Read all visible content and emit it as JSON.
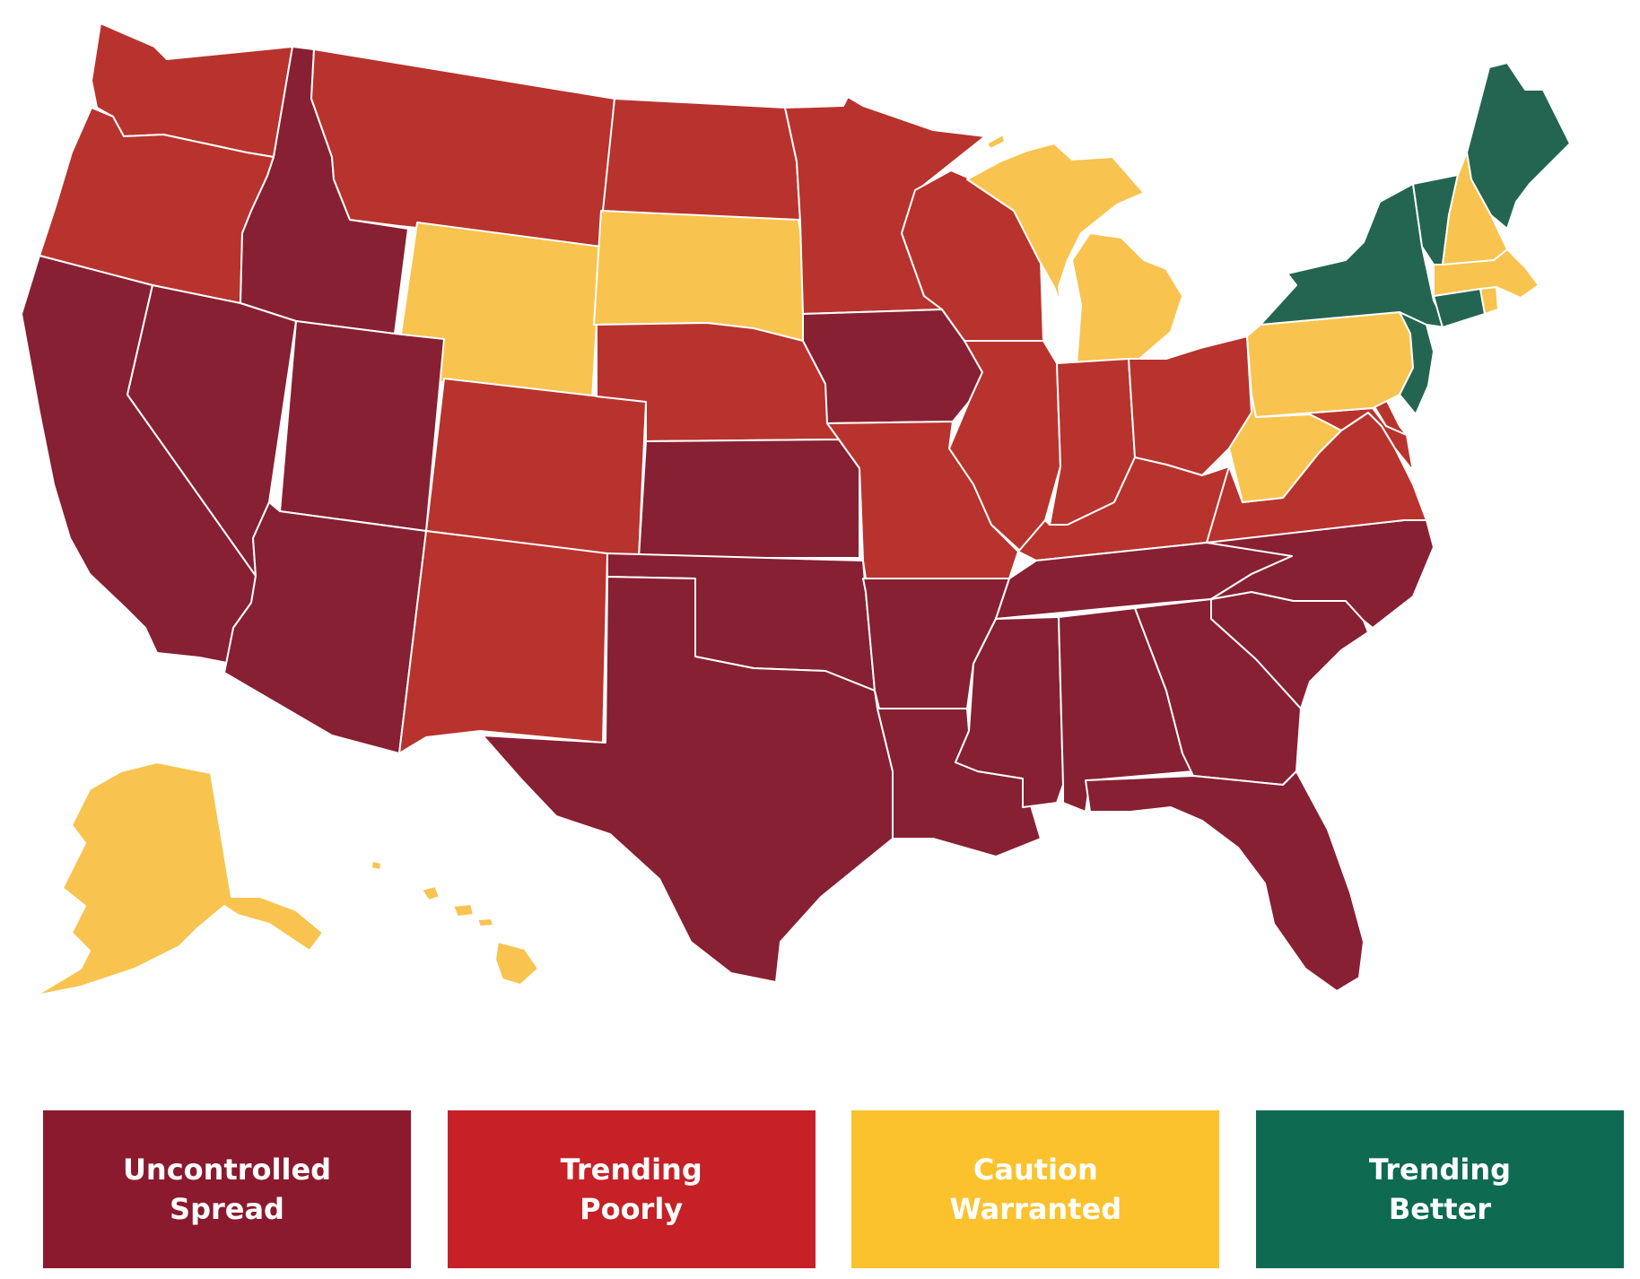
{
  "categories": [
    {
      "key": "uncontrolled",
      "label": "Uncontrolled\nSpread",
      "color": "#8b1a2e",
      "map_color": "#872032"
    },
    {
      "key": "poorly",
      "label": "Trending\nPoorly",
      "color": "#c52127",
      "map_color": "#b8332d"
    },
    {
      "key": "caution",
      "label": "Caution\nWarranted",
      "color": "#fbc22e",
      "map_color": "#f8c34f"
    },
    {
      "key": "better",
      "label": "Trending\nBetter",
      "color": "#0e6b52",
      "map_color": "#246552"
    }
  ],
  "states": [
    {
      "code": "WA",
      "name": "Washington",
      "status": "poorly"
    },
    {
      "code": "OR",
      "name": "Oregon",
      "status": "poorly"
    },
    {
      "code": "CA",
      "name": "California",
      "status": "uncontrolled"
    },
    {
      "code": "ID",
      "name": "Idaho",
      "status": "uncontrolled"
    },
    {
      "code": "NV",
      "name": "Nevada",
      "status": "uncontrolled"
    },
    {
      "code": "MT",
      "name": "Montana",
      "status": "poorly"
    },
    {
      "code": "WY",
      "name": "Wyoming",
      "status": "caution"
    },
    {
      "code": "UT",
      "name": "Utah",
      "status": "uncontrolled"
    },
    {
      "code": "AZ",
      "name": "Arizona",
      "status": "uncontrolled"
    },
    {
      "code": "CO",
      "name": "Colorado",
      "status": "poorly"
    },
    {
      "code": "NM",
      "name": "New Mexico",
      "status": "poorly"
    },
    {
      "code": "ND",
      "name": "North Dakota",
      "status": "poorly"
    },
    {
      "code": "SD",
      "name": "South Dakota",
      "status": "caution"
    },
    {
      "code": "NE",
      "name": "Nebraska",
      "status": "poorly"
    },
    {
      "code": "KS",
      "name": "Kansas",
      "status": "uncontrolled"
    },
    {
      "code": "OK",
      "name": "Oklahoma",
      "status": "uncontrolled"
    },
    {
      "code": "TX",
      "name": "Texas",
      "status": "uncontrolled"
    },
    {
      "code": "MN",
      "name": "Minnesota",
      "status": "poorly"
    },
    {
      "code": "IA",
      "name": "Iowa",
      "status": "uncontrolled"
    },
    {
      "code": "MO",
      "name": "Missouri",
      "status": "poorly"
    },
    {
      "code": "AR",
      "name": "Arkansas",
      "status": "uncontrolled"
    },
    {
      "code": "LA",
      "name": "Louisiana",
      "status": "uncontrolled"
    },
    {
      "code": "WI",
      "name": "Wisconsin",
      "status": "poorly"
    },
    {
      "code": "IL",
      "name": "Illinois",
      "status": "poorly"
    },
    {
      "code": "MI",
      "name": "Michigan",
      "status": "caution"
    },
    {
      "code": "IN",
      "name": "Indiana",
      "status": "poorly"
    },
    {
      "code": "OH",
      "name": "Ohio",
      "status": "poorly"
    },
    {
      "code": "KY",
      "name": "Kentucky",
      "status": "poorly"
    },
    {
      "code": "TN",
      "name": "Tennessee",
      "status": "uncontrolled"
    },
    {
      "code": "MS",
      "name": "Mississippi",
      "status": "uncontrolled"
    },
    {
      "code": "AL",
      "name": "Alabama",
      "status": "uncontrolled"
    },
    {
      "code": "GA",
      "name": "Georgia",
      "status": "uncontrolled"
    },
    {
      "code": "FL",
      "name": "Florida",
      "status": "uncontrolled"
    },
    {
      "code": "SC",
      "name": "South Carolina",
      "status": "uncontrolled"
    },
    {
      "code": "NC",
      "name": "North Carolina",
      "status": "uncontrolled"
    },
    {
      "code": "VA",
      "name": "Virginia",
      "status": "poorly"
    },
    {
      "code": "WV",
      "name": "West Virginia",
      "status": "caution"
    },
    {
      "code": "MD",
      "name": "Maryland",
      "status": "poorly"
    },
    {
      "code": "DE",
      "name": "Delaware",
      "status": "poorly"
    },
    {
      "code": "PA",
      "name": "Pennsylvania",
      "status": "caution"
    },
    {
      "code": "NJ",
      "name": "New Jersey",
      "status": "better"
    },
    {
      "code": "NY",
      "name": "New York",
      "status": "better"
    },
    {
      "code": "CT",
      "name": "Connecticut",
      "status": "better"
    },
    {
      "code": "RI",
      "name": "Rhode Island",
      "status": "caution"
    },
    {
      "code": "MA",
      "name": "Massachusetts",
      "status": "caution"
    },
    {
      "code": "VT",
      "name": "Vermont",
      "status": "better"
    },
    {
      "code": "NH",
      "name": "New Hampshire",
      "status": "caution"
    },
    {
      "code": "ME",
      "name": "Maine",
      "status": "better"
    },
    {
      "code": "AK",
      "name": "Alaska",
      "status": "caution"
    },
    {
      "code": "HI",
      "name": "Hawaii",
      "status": "caution"
    }
  ]
}
